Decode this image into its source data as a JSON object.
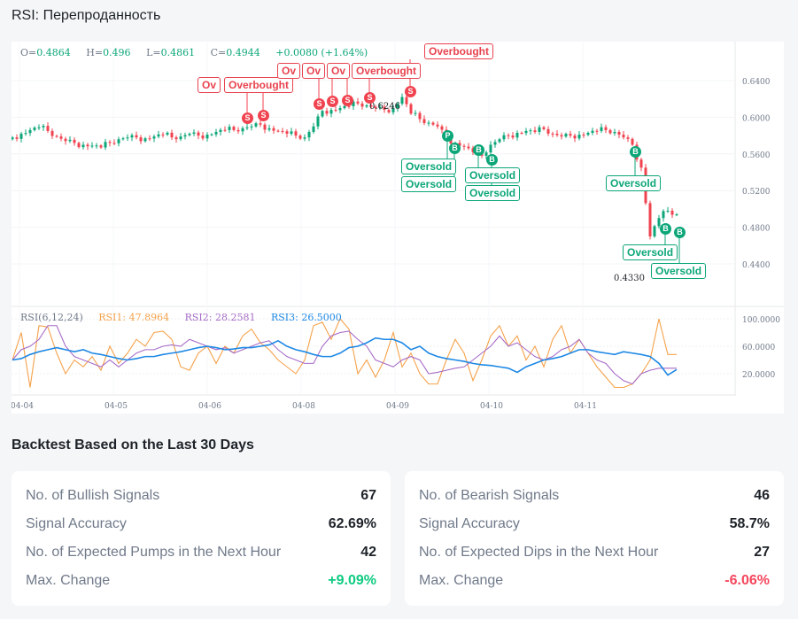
{
  "title": "RSI: Перепроданность",
  "ohlc": {
    "o_label": "O=",
    "o": "0.4864",
    "h_label": "H=",
    "h": "0.496",
    "l_label": "L=",
    "l": "0.4861",
    "c_label": "C=",
    "c": "0.4944",
    "change": "+0.0080 (+1.64%)"
  },
  "rsi_legend": {
    "name": "RSI(6,12,24)",
    "rsi1": "RSI1: 47.8964",
    "rsi2": "RSI2: 28.2581",
    "rsi3": "RSI3: 26.5000"
  },
  "annotations": {
    "high": "0.6246",
    "low": "0.4330"
  },
  "markers": {
    "sell_label": "Overbought",
    "sell_short": "Ov",
    "sell_letter": "S",
    "buy_label": "Oversold",
    "buy_letter": "B",
    "p_letter": "P"
  },
  "colors": {
    "up": "#0ca678",
    "down": "#f0434f",
    "rsi1": "#f5a24b",
    "rsi2": "#a66bc7",
    "rsi3": "#1e88e5"
  },
  "chart_data": [
    {
      "type": "candlestick",
      "title": "",
      "y_ticks": [
        "0.6400",
        "0.6000",
        "0.5600",
        "0.5200",
        "0.4800",
        "0.4400"
      ],
      "ylim": [
        0.42,
        0.66
      ],
      "x_ticks": [
        "04-04",
        "04-05",
        "04-06",
        "04-08",
        "04-09",
        "04-10",
        "04-11"
      ],
      "close": [
        0.578,
        0.582,
        0.586,
        0.589,
        0.585,
        0.579,
        0.574,
        0.572,
        0.57,
        0.569,
        0.567,
        0.572,
        0.576,
        0.578,
        0.578,
        0.577,
        0.579,
        0.581,
        0.578,
        0.579,
        0.582,
        0.58,
        0.581,
        0.584,
        0.586,
        0.586,
        0.588,
        0.59,
        0.592,
        0.588,
        0.585,
        0.582,
        0.58,
        0.578,
        0.59,
        0.607,
        0.608,
        0.61,
        0.612,
        0.615,
        0.613,
        0.61,
        0.608,
        0.61,
        0.622,
        0.604,
        0.598,
        0.594,
        0.59,
        0.578,
        0.572,
        0.568,
        0.562,
        0.558,
        0.57,
        0.576,
        0.58,
        0.583,
        0.585,
        0.584,
        0.587,
        0.582,
        0.579,
        0.58,
        0.581,
        0.583,
        0.585,
        0.586,
        0.584,
        0.578,
        0.57,
        0.545,
        0.47,
        0.49,
        0.498,
        0.494
      ]
    },
    {
      "type": "line",
      "title": "RSI(6,12,24)",
      "y_ticks": [
        "100.0000",
        "60.0000",
        "20.0000"
      ],
      "ylim": [
        -10,
        115
      ],
      "series": [
        {
          "name": "RSI1",
          "values": [
            40,
            80,
            0,
            90,
            88,
            50,
            20,
            40,
            30,
            45,
            25,
            60,
            35,
            50,
            70,
            60,
            80,
            82,
            70,
            30,
            25,
            50,
            60,
            35,
            60,
            50,
            75,
            85,
            65,
            55,
            40,
            30,
            20,
            40,
            90,
            95,
            70,
            100,
            85,
            20,
            40,
            15,
            40,
            80,
            30,
            50,
            20,
            5,
            5,
            40,
            70,
            50,
            10,
            40,
            75,
            90,
            60,
            75,
            40,
            60,
            30,
            70,
            90,
            50,
            70,
            50,
            30,
            15,
            0,
            0,
            5,
            20,
            40,
            100,
            48,
            48
          ]
        },
        {
          "name": "RSI2",
          "values": [
            40,
            55,
            60,
            70,
            90,
            90,
            60,
            45,
            40,
            35,
            30,
            40,
            30,
            40,
            50,
            55,
            55,
            60,
            62,
            60,
            70,
            65,
            60,
            55,
            58,
            50,
            55,
            60,
            65,
            68,
            55,
            45,
            40,
            35,
            35,
            60,
            75,
            80,
            82,
            70,
            60,
            40,
            35,
            30,
            40,
            45,
            40,
            20,
            22,
            25,
            28,
            30,
            40,
            50,
            60,
            75,
            60,
            65,
            55,
            45,
            40,
            45,
            55,
            60,
            70,
            50,
            40,
            35,
            20,
            10,
            5,
            20,
            25,
            28,
            28,
            28
          ]
        },
        {
          "name": "RSI3",
          "values": [
            40,
            42,
            48,
            52,
            55,
            58,
            55,
            52,
            55,
            50,
            48,
            45,
            42,
            40,
            42,
            45,
            45,
            48,
            50,
            52,
            55,
            58,
            60,
            58,
            55,
            56,
            58,
            58,
            60,
            62,
            68,
            60,
            55,
            52,
            48,
            45,
            45,
            50,
            58,
            60,
            65,
            72,
            70,
            70,
            65,
            55,
            60,
            50,
            45,
            42,
            40,
            38,
            35,
            33,
            32,
            30,
            28,
            22,
            30,
            35,
            40,
            42,
            45,
            50,
            55,
            55,
            52,
            50,
            48,
            52,
            50,
            48,
            45,
            35,
            18,
            26
          ]
        }
      ]
    }
  ],
  "backtest": {
    "heading": "Backtest Based on the Last 30 Days",
    "bullish": [
      {
        "label": "No. of Bullish Signals",
        "value": "67"
      },
      {
        "label": "Signal Accuracy",
        "value": "62.69%"
      },
      {
        "label": "No. of Expected Pumps in the Next Hour",
        "value": "42"
      },
      {
        "label": "Max. Change",
        "value": "+9.09%"
      }
    ],
    "bearish": [
      {
        "label": "No. of Bearish Signals",
        "value": "46"
      },
      {
        "label": "Signal Accuracy",
        "value": "58.7%"
      },
      {
        "label": "No. of Expected Dips in the Next Hour",
        "value": "27"
      },
      {
        "label": "Max. Change",
        "value": "-6.06%"
      }
    ]
  }
}
